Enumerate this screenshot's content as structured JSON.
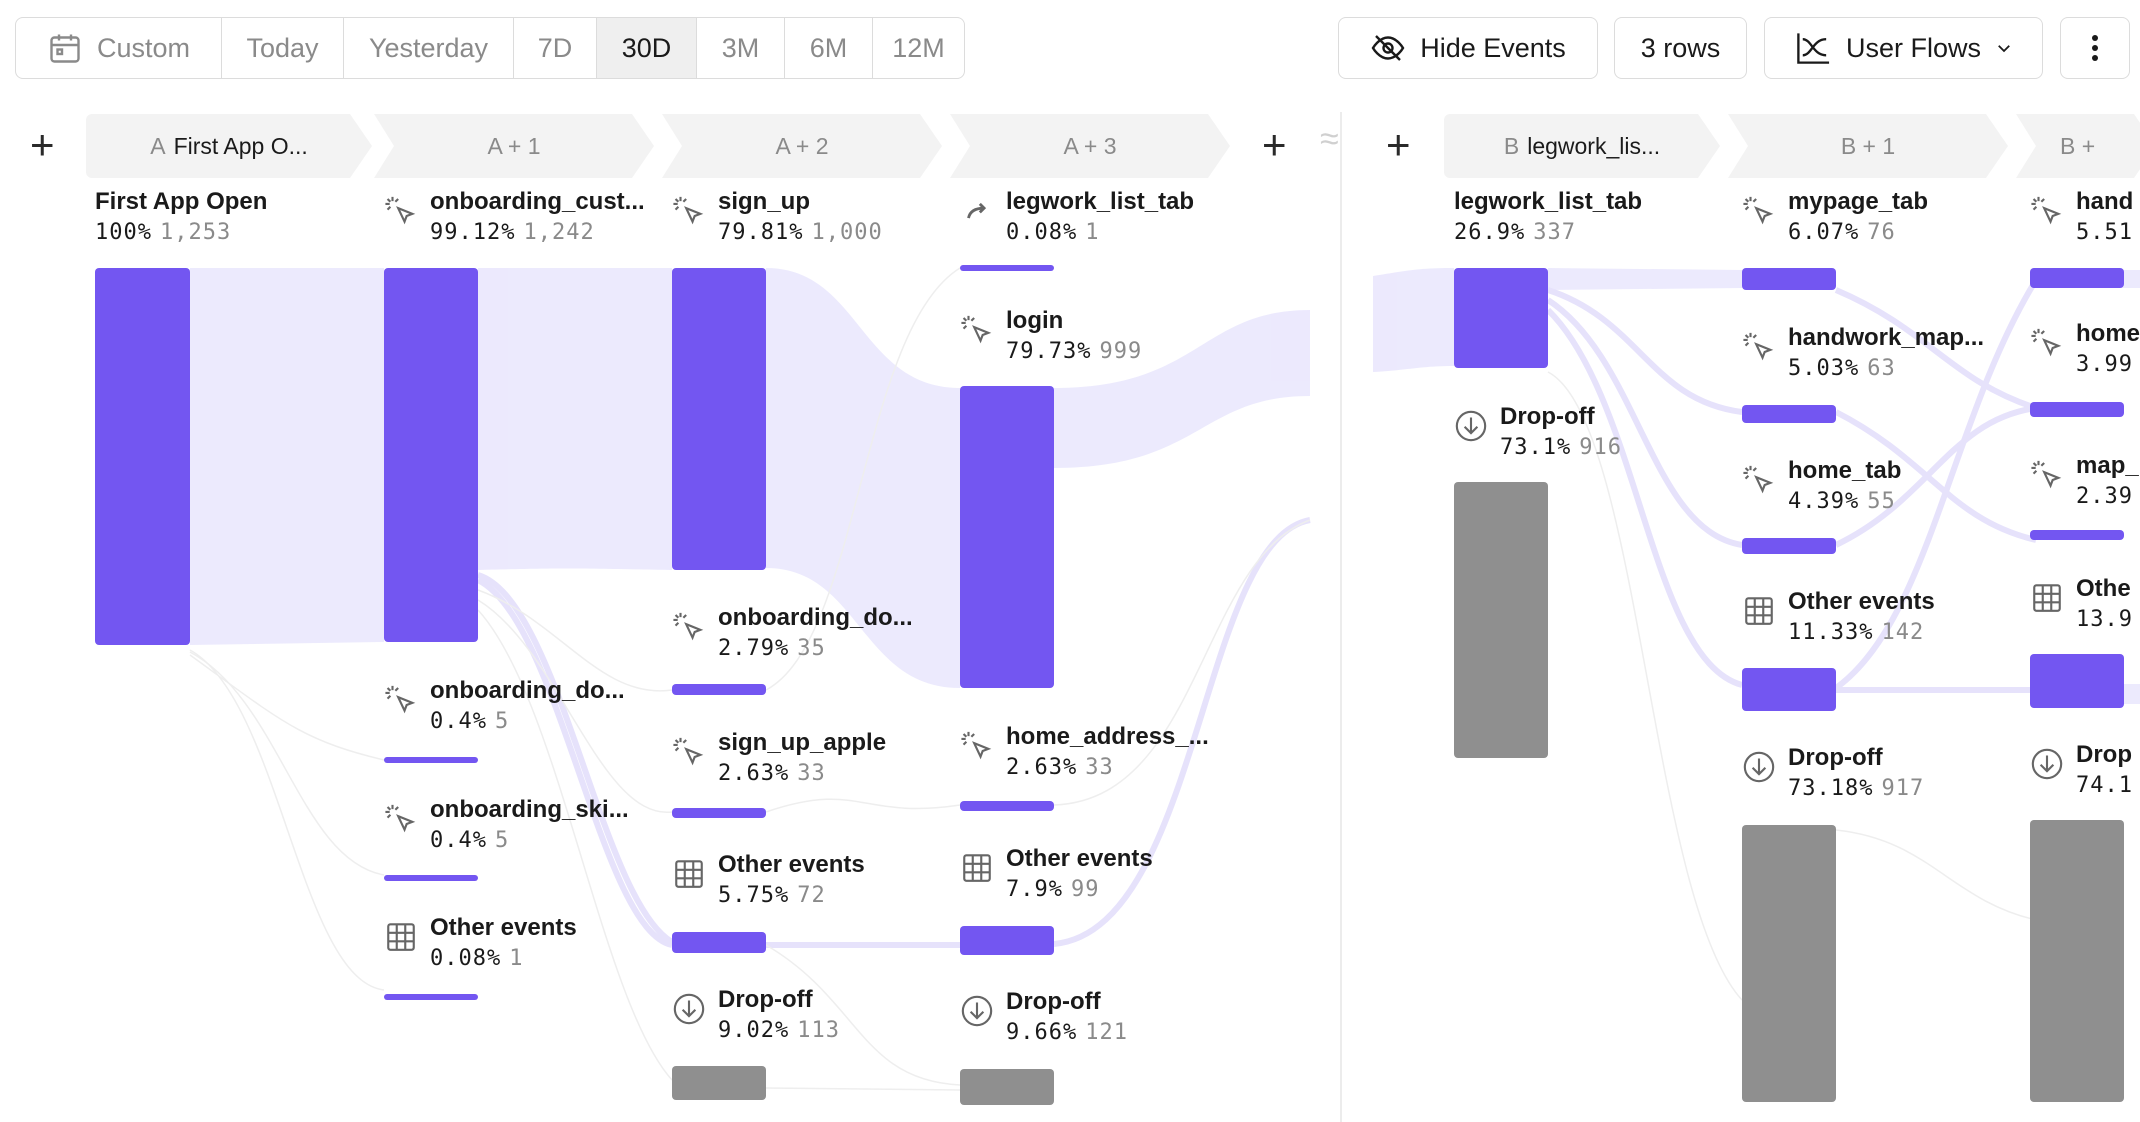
{
  "toolbar": {
    "date_ranges": [
      {
        "label": "Custom",
        "active": false,
        "icon": "calendar-icon"
      },
      {
        "label": "Today",
        "active": false
      },
      {
        "label": "Yesterday",
        "active": false
      },
      {
        "label": "7D",
        "active": false
      },
      {
        "label": "30D",
        "active": true
      },
      {
        "label": "3M",
        "active": false
      },
      {
        "label": "6M",
        "active": false
      },
      {
        "label": "12M",
        "active": false
      }
    ],
    "hide_events_label": "Hide Events",
    "rows_label": "3 rows",
    "view_label": "User Flows"
  },
  "steps_left": [
    {
      "letter": "A",
      "label": "First App O..."
    },
    {
      "letter": "",
      "label": "A + 1"
    },
    {
      "letter": "",
      "label": "A + 2"
    },
    {
      "letter": "",
      "label": "A + 3"
    }
  ],
  "steps_right": [
    {
      "letter": "B",
      "label": "legwork_lis..."
    },
    {
      "letter": "",
      "label": "B + 1"
    },
    {
      "letter": "",
      "label": "B +"
    }
  ],
  "nodes": {
    "a0": [
      {
        "name": "First App Open",
        "pct": "100%",
        "count": "1,253",
        "icon": "none"
      }
    ],
    "a1": [
      {
        "name": "onboarding_cust...",
        "pct": "99.12%",
        "count": "1,242",
        "icon": "click-icon"
      },
      {
        "name": "onboarding_do...",
        "pct": "0.4%",
        "count": "5",
        "icon": "click-icon"
      },
      {
        "name": "onboarding_ski...",
        "pct": "0.4%",
        "count": "5",
        "icon": "click-icon"
      },
      {
        "name": "Other events",
        "pct": "0.08%",
        "count": "1",
        "icon": "grid-icon"
      }
    ],
    "a2": [
      {
        "name": "sign_up",
        "pct": "79.81%",
        "count": "1,000",
        "icon": "click-icon"
      },
      {
        "name": "onboarding_do...",
        "pct": "2.79%",
        "count": "35",
        "icon": "click-icon"
      },
      {
        "name": "sign_up_apple",
        "pct": "2.63%",
        "count": "33",
        "icon": "click-icon"
      },
      {
        "name": "Other events",
        "pct": "5.75%",
        "count": "72",
        "icon": "grid-icon"
      },
      {
        "name": "Drop-off",
        "pct": "9.02%",
        "count": "113",
        "icon": "dropoff-icon"
      }
    ],
    "a3": [
      {
        "name": "legwork_list_tab",
        "pct": "0.08%",
        "count": "1",
        "icon": "redirect-icon"
      },
      {
        "name": "login",
        "pct": "79.73%",
        "count": "999",
        "icon": "click-icon"
      },
      {
        "name": "home_address_...",
        "pct": "2.63%",
        "count": "33",
        "icon": "click-icon"
      },
      {
        "name": "Other events",
        "pct": "7.9%",
        "count": "99",
        "icon": "grid-icon"
      },
      {
        "name": "Drop-off",
        "pct": "9.66%",
        "count": "121",
        "icon": "dropoff-icon"
      }
    ],
    "b0": [
      {
        "name": "legwork_list_tab",
        "pct": "26.9%",
        "count": "337",
        "icon": "none"
      },
      {
        "name": "Drop-off",
        "pct": "73.1%",
        "count": "916",
        "icon": "dropoff-icon"
      }
    ],
    "b1": [
      {
        "name": "mypage_tab",
        "pct": "6.07%",
        "count": "76",
        "icon": "click-icon"
      },
      {
        "name": "handwork_map...",
        "pct": "5.03%",
        "count": "63",
        "icon": "click-icon"
      },
      {
        "name": "home_tab",
        "pct": "4.39%",
        "count": "55",
        "icon": "click-icon"
      },
      {
        "name": "Other events",
        "pct": "11.33%",
        "count": "142",
        "icon": "grid-icon"
      },
      {
        "name": "Drop-off",
        "pct": "73.18%",
        "count": "917",
        "icon": "dropoff-icon"
      }
    ],
    "b2": [
      {
        "name": "hand",
        "pct": "5.51",
        "count": "",
        "icon": "click-icon"
      },
      {
        "name": "home",
        "pct": "3.99",
        "count": "",
        "icon": "click-icon"
      },
      {
        "name": "map_",
        "pct": "2.39",
        "count": "",
        "icon": "click-icon"
      },
      {
        "name": "Othe",
        "pct": "13.9",
        "count": "",
        "icon": "grid-icon"
      },
      {
        "name": "Drop",
        "pct": "74.1",
        "count": "",
        "icon": "dropoff-icon"
      }
    ]
  },
  "colors": {
    "accent": "#7356f1",
    "flow": "#e9e6fd",
    "dropoff": "#8f8f8f"
  }
}
